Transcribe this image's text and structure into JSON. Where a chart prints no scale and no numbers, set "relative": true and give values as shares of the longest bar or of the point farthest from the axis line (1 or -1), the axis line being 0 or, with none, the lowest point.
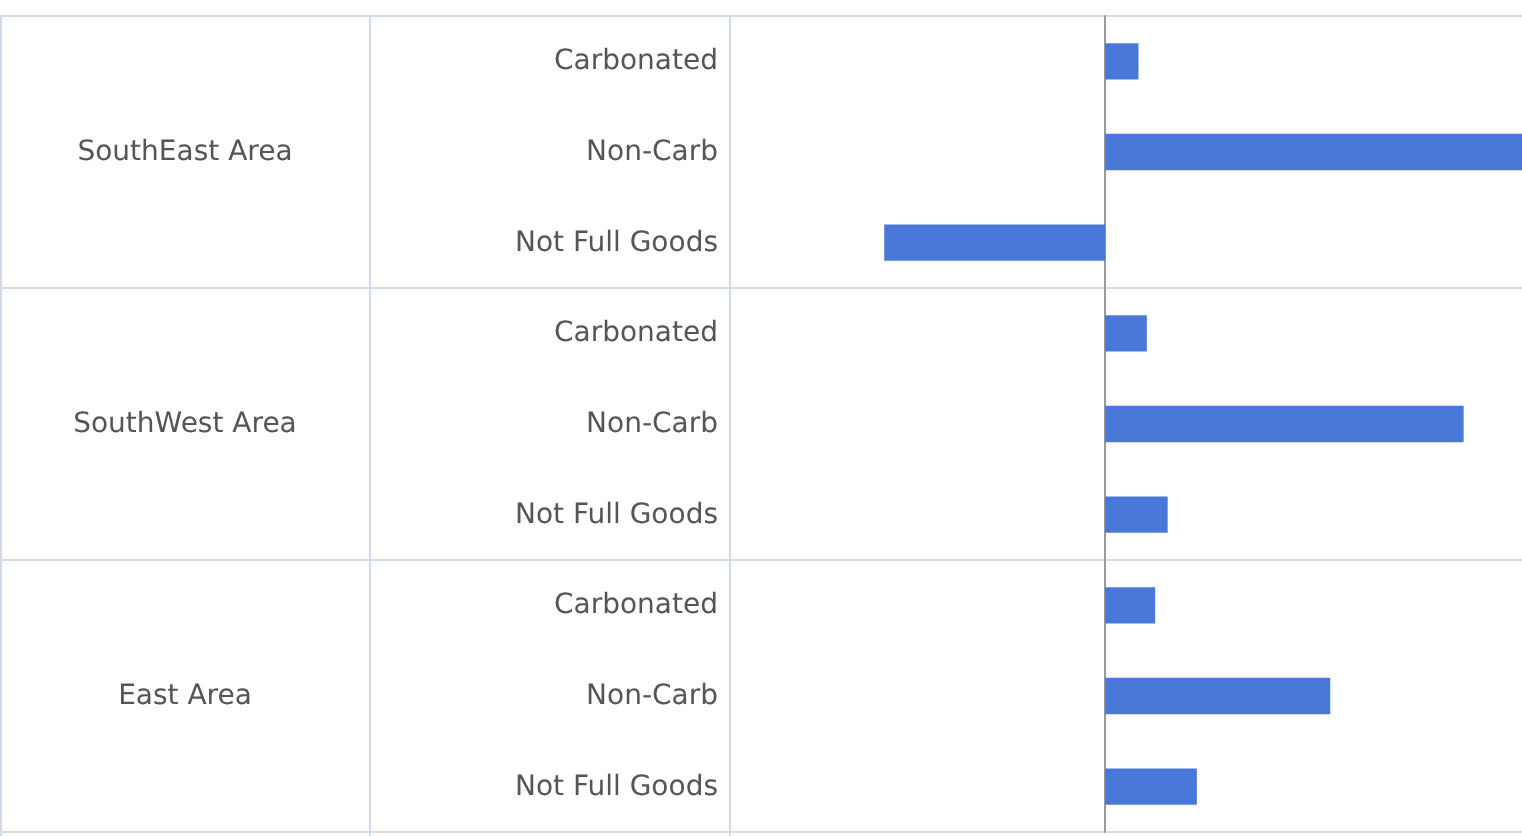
{
  "chart_data": {
    "type": "bar",
    "orientation": "horizontal",
    "relative": true,
    "categories": [
      "Carbonated",
      "Non-Carb",
      "Not Full Goods",
      "Carbonated",
      "Non-Carb",
      "Not Full Goods",
      "Carbonated",
      "Non-Carb",
      "Not Full Goods"
    ],
    "values": [
      0.08,
      1,
      -0.53,
      0.1,
      0.86,
      0.15,
      0.12,
      0.54,
      0.22
    ],
    "color": "#4a78d8",
    "annotations": [
      "SouthEast Area",
      "SouthWest Area",
      "East Area"
    ]
  }
}
